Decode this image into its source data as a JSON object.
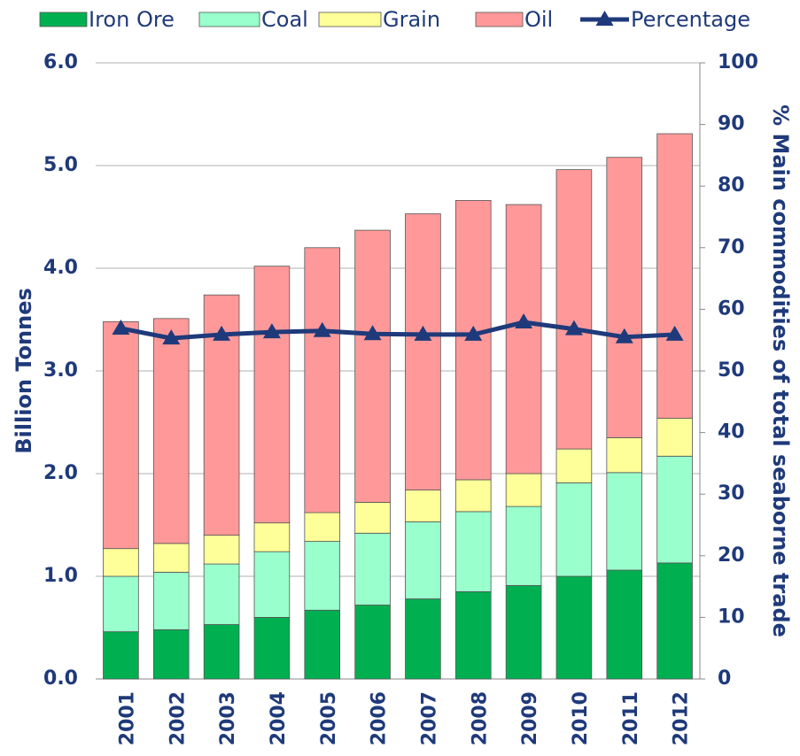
{
  "chart_data": {
    "type": "bar",
    "stacked": true,
    "y_label": "Billion Tonnes",
    "y2_label": "% Main commodities of total seaborne trade",
    "categories": [
      "2001",
      "2002",
      "2003",
      "2004",
      "2005",
      "2006",
      "2007",
      "2008",
      "2009",
      "2010",
      "2011",
      "2012"
    ],
    "series": [
      {
        "name": "Iron Ore",
        "color": "#00b050",
        "values": [
          0.46,
          0.48,
          0.53,
          0.6,
          0.67,
          0.72,
          0.78,
          0.85,
          0.91,
          1.0,
          1.06,
          1.13
        ]
      },
      {
        "name": "Coal",
        "color": "#99ffcc",
        "values": [
          0.54,
          0.56,
          0.59,
          0.64,
          0.67,
          0.7,
          0.75,
          0.78,
          0.77,
          0.91,
          0.95,
          1.04
        ]
      },
      {
        "name": "Grain",
        "color": "#ffff99",
        "values": [
          0.27,
          0.28,
          0.28,
          0.28,
          0.28,
          0.3,
          0.31,
          0.31,
          0.32,
          0.33,
          0.34,
          0.37
        ]
      },
      {
        "name": "Oil",
        "color": "#ff9999",
        "values": [
          2.21,
          2.19,
          2.34,
          2.5,
          2.58,
          2.65,
          2.69,
          2.72,
          2.62,
          2.72,
          2.73,
          2.77
        ]
      },
      {
        "name": "Percentage",
        "color": "#1f3a7a",
        "type": "line",
        "axis": "y2",
        "values": [
          56.9,
          55.3,
          55.9,
          56.3,
          56.5,
          56.0,
          55.9,
          55.9,
          57.9,
          56.8,
          55.5,
          55.9
        ]
      }
    ],
    "ylim": [
      0,
      6
    ],
    "yticks": [
      {
        "value": 0,
        "label": "0.0"
      },
      {
        "value": 1,
        "label": "1.0"
      },
      {
        "value": 2,
        "label": "2.0"
      },
      {
        "value": 3,
        "label": "3.0"
      },
      {
        "value": 4,
        "label": "4.0"
      },
      {
        "value": 5,
        "label": "5.0"
      },
      {
        "value": 6,
        "label": "6.0"
      }
    ],
    "y2lim": [
      0,
      100
    ],
    "y2ticks": [
      0,
      10,
      20,
      30,
      40,
      50,
      60,
      70,
      80,
      90,
      100
    ],
    "grid": true,
    "legend": "top"
  }
}
